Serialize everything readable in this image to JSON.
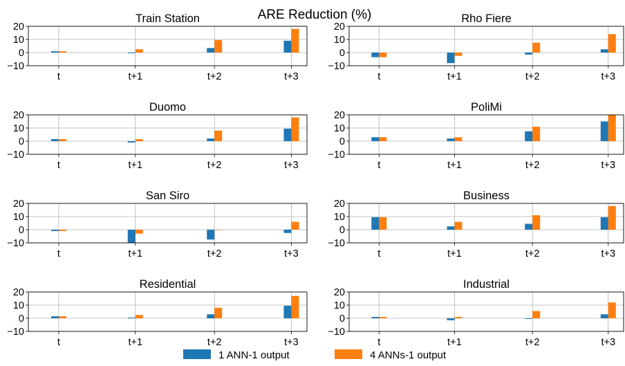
{
  "chart_data": {
    "type": "bar",
    "title": "ARE Reduction (%)",
    "categories": [
      "t",
      "t+1",
      "t+2",
      "t+3"
    ],
    "ylim": [
      -10,
      20
    ],
    "yticks": [
      "20",
      "10",
      "0",
      "−10"
    ],
    "grid": true,
    "legend_position": "bottom-center",
    "series_names": [
      "1 ANN-1 output",
      "4 ANNs-1 output"
    ],
    "colors": {
      "1 ANN-1 output": "#1f77b4",
      "4 ANNs-1 output": "#ff7f0e"
    },
    "panels": [
      {
        "title": "Train Station",
        "series": [
          {
            "name": "1 ANN-1 output",
            "values": [
              1,
              -0.5,
              3.5,
              9
            ]
          },
          {
            "name": "4 ANNs-1 output",
            "values": [
              1,
              2.5,
              9.5,
              18
            ]
          }
        ]
      },
      {
        "title": "Rho Fiere",
        "series": [
          {
            "name": "1 ANN-1 output",
            "values": [
              -3.5,
              -8,
              -1.5,
              2.5
            ]
          },
          {
            "name": "4 ANNs-1 output",
            "values": [
              -3.5,
              -2.5,
              7.5,
              14
            ]
          }
        ]
      },
      {
        "title": "Duomo",
        "series": [
          {
            "name": "1 ANN-1 output",
            "values": [
              1.5,
              -1,
              2,
              9.5
            ]
          },
          {
            "name": "4 ANNs-1 output",
            "values": [
              1.5,
              1.5,
              8,
              18
            ]
          }
        ]
      },
      {
        "title": "PoliMi",
        "series": [
          {
            "name": "1 ANN-1 output",
            "values": [
              3,
              2,
              7.5,
              15
            ]
          },
          {
            "name": "4 ANNs-1 output",
            "values": [
              3,
              3,
              11,
              20
            ]
          }
        ]
      },
      {
        "title": "San Siro",
        "series": [
          {
            "name": "1 ANN-1 output",
            "values": [
              -1,
              -10,
              -7.5,
              -2.5
            ]
          },
          {
            "name": "4 ANNs-1 output",
            "values": [
              -1,
              -3,
              0,
              6
            ]
          }
        ]
      },
      {
        "title": "Business",
        "series": [
          {
            "name": "1 ANN-1 output",
            "values": [
              9.5,
              2.5,
              4.5,
              9.5
            ]
          },
          {
            "name": "4 ANNs-1 output",
            "values": [
              9.5,
              6,
              11,
              18
            ]
          }
        ]
      },
      {
        "title": "Residential",
        "series": [
          {
            "name": "1 ANN-1 output",
            "values": [
              1.5,
              0.5,
              3,
              9.5
            ]
          },
          {
            "name": "4 ANNs-1 output",
            "values": [
              1.5,
              2.5,
              8,
              17
            ]
          }
        ]
      },
      {
        "title": "Industrial",
        "series": [
          {
            "name": "1 ANN-1 output",
            "values": [
              1,
              -1.5,
              -0.5,
              3
            ]
          },
          {
            "name": "4 ANNs-1 output",
            "values": [
              1,
              1,
              5.5,
              12
            ]
          }
        ]
      }
    ]
  }
}
